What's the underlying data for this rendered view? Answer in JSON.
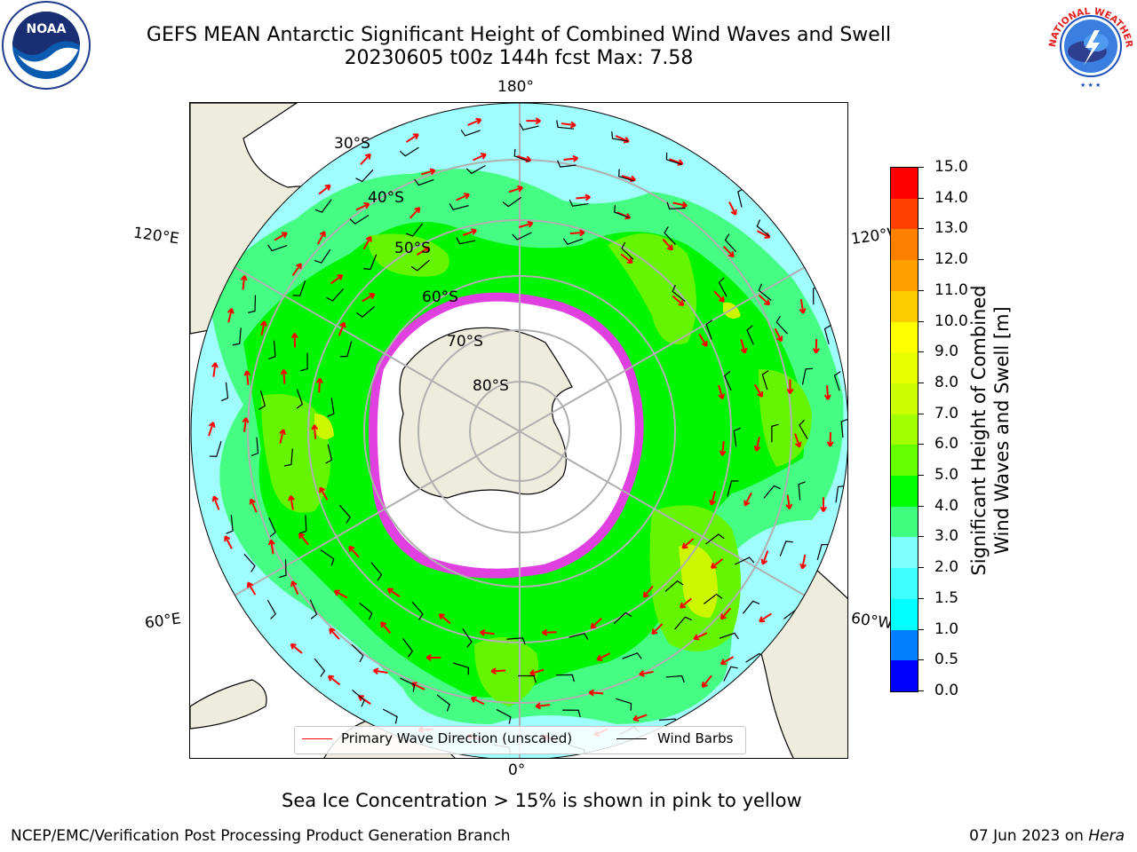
{
  "header": {
    "title_line1": "GEFS MEAN Antarctic Significant Height of Combined Wind Waves and Swell",
    "title_line2": "20230605 t00z 144h fcst   Max: 7.58"
  },
  "logos": {
    "left": "noaa-logo",
    "right": "nws-logo",
    "left_text": "NOAA",
    "right_text": "NATIONAL WEATHER SERVICE"
  },
  "map": {
    "projection": "south-polar-stereographic",
    "lon_labels": [
      "180°",
      "120°E",
      "120°W",
      "60°E",
      "60°W",
      "0°"
    ],
    "lat_labels": [
      "30°S",
      "40°S",
      "50°S",
      "60°S",
      "70°S",
      "80°S"
    ]
  },
  "legend": {
    "primary_wave": "Primary Wave Direction (unscaled)",
    "wind_barbs": "Wind Barbs"
  },
  "colorbar": {
    "title_line1": "Significant Height of Combined",
    "title_line2": "Wind Waves and Swell [m]",
    "ticks": [
      "0.0",
      "0.5",
      "1.0",
      "1.5",
      "2.0",
      "3.0",
      "4.0",
      "5.0",
      "6.0",
      "7.0",
      "8.0",
      "9.0",
      "10.0",
      "11.0",
      "12.0",
      "13.0",
      "14.0",
      "15.0"
    ],
    "colors": [
      "#0000ff",
      "#0080ff",
      "#00ffff",
      "#40ffff",
      "#80ffff",
      "#40ff80",
      "#00ff00",
      "#66ff00",
      "#a0ff00",
      "#ccff00",
      "#e8ff00",
      "#ffff00",
      "#ffcc00",
      "#ffa000",
      "#ff8000",
      "#ff4000",
      "#ff0000"
    ]
  },
  "footer": {
    "ice_note": "Sea Ice Concentration > 15% is shown in pink to yellow",
    "credit": "NCEP/EMC/Verification Post Processing Product Generation Branch",
    "date_prefix": "07 Jun 2023 on ",
    "host": "Hera"
  }
}
